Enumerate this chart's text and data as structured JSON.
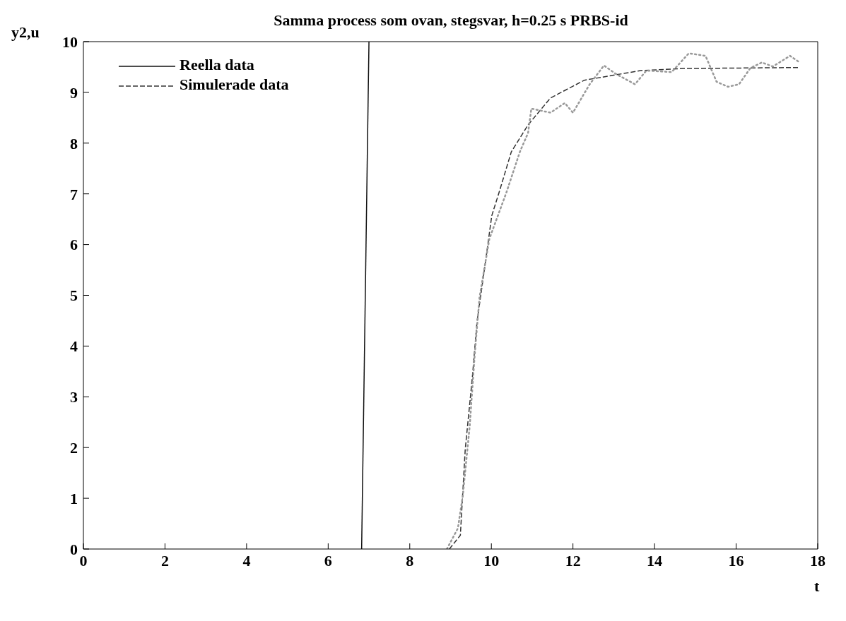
{
  "chart_data": {
    "type": "line",
    "title": "Samma process som ovan, stegsvar, h=0.25 s PRBS-id",
    "xlabel": "t",
    "ylabel": "y2,u",
    "xlim": [
      0,
      18
    ],
    "xticks": [
      0,
      2,
      4,
      6,
      8,
      10,
      12,
      14,
      16,
      18
    ],
    "ylim": [
      0,
      10
    ],
    "yticks": [
      0,
      1,
      2,
      3,
      4,
      5,
      6,
      7,
      8,
      9,
      10
    ],
    "legend": "top left",
    "marker": "none",
    "series": [
      {
        "name": "Reella data",
        "color": "#111111",
        "line_style": "solid",
        "x": [
          6.82,
          7.0
        ],
        "values": [
          0,
          10
        ]
      },
      {
        "name": "Simulerade data",
        "color": "#333333",
        "line_style": "dashed",
        "x": [
          8.97,
          9.24,
          9.36,
          9.53,
          9.65,
          9.83,
          10.01,
          10.19,
          10.49,
          10.9,
          11.45,
          12.28,
          13.66,
          14.7,
          17.52
        ],
        "values": [
          0,
          0.27,
          1.97,
          3.35,
          4.49,
          5.51,
          6.57,
          7.03,
          7.83,
          8.36,
          8.89,
          9.24,
          9.43,
          9.47,
          9.49
        ]
      },
      {
        "color": "#999999",
        "line_style": "dotted",
        "x": [
          8.91,
          9.18,
          9.3,
          9.47,
          9.59,
          9.71,
          9.95,
          10.37,
          10.7,
          10.9,
          10.98,
          11.45,
          11.8,
          12.0,
          12.41,
          12.76,
          13.04,
          13.52,
          13.8,
          14.42,
          14.84,
          15.25,
          15.52,
          15.8,
          16.07,
          16.35,
          16.63,
          16.9,
          17.32,
          17.56
        ],
        "values": [
          0,
          0.41,
          1.05,
          2.43,
          3.81,
          4.96,
          6.11,
          7.03,
          7.83,
          8.2,
          8.68,
          8.6,
          8.79,
          8.6,
          9.16,
          9.53,
          9.37,
          9.16,
          9.43,
          9.4,
          9.77,
          9.72,
          9.21,
          9.11,
          9.16,
          9.48,
          9.59,
          9.51,
          9.72,
          9.59
        ]
      }
    ]
  }
}
